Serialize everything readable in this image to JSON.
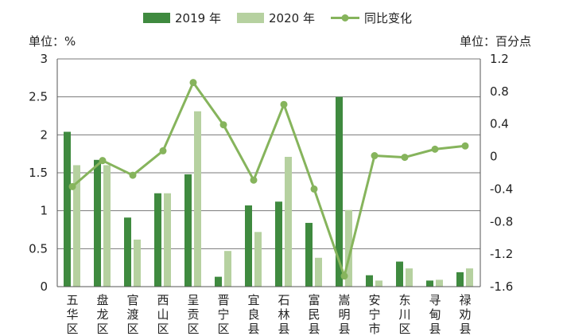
{
  "chart_data": {
    "type": "bar",
    "categories": [
      "五华区",
      "盘龙区",
      "官渡区",
      "西山区",
      "呈贡区",
      "晋宁区",
      "宜良县",
      "石林县",
      "富民县",
      "嵩明县",
      "安宁市",
      "东川区",
      "寻甸县",
      "禄劝县"
    ],
    "series": [
      {
        "name": "2019 年",
        "kind": "bar",
        "axis": "left",
        "color": "#3f8a3f",
        "values": [
          2.04,
          1.67,
          0.91,
          1.23,
          1.48,
          0.13,
          1.07,
          1.12,
          0.84,
          2.5,
          0.15,
          0.33,
          0.08,
          0.19
        ]
      },
      {
        "name": "2020 年",
        "kind": "bar",
        "axis": "left",
        "color": "#b6d1a0",
        "values": [
          1.6,
          1.6,
          0.62,
          1.23,
          2.31,
          0.47,
          0.72,
          1.71,
          0.38,
          1.01,
          0.08,
          0.24,
          0.09,
          0.24
        ]
      },
      {
        "name": "同比变化",
        "kind": "line",
        "axis": "right",
        "color": "#86b45c",
        "values": [
          -0.37,
          -0.05,
          -0.23,
          0.07,
          0.91,
          0.39,
          -0.29,
          0.64,
          -0.4,
          -1.47,
          0.01,
          -0.01,
          0.09,
          0.13
        ]
      }
    ],
    "left_axis": {
      "unit_label": "单位：%",
      "min": 0,
      "max": 3,
      "ticks": [
        0,
        0.5,
        1,
        1.5,
        2,
        2.5,
        3
      ],
      "tick_labels": [
        "0",
        "0.5",
        "1",
        "1.5",
        "2",
        "2.5",
        "3"
      ]
    },
    "right_axis": {
      "unit_label": "单位：百分点",
      "min": -1.6,
      "max": 1.2,
      "ticks": [
        -1.6,
        -1.2,
        -0.8,
        -0.4,
        0,
        0.4,
        0.8,
        1.2
      ],
      "tick_labels": [
        "-1.6",
        "-1.2",
        "-0.8",
        "-0.4",
        "0",
        "0.4",
        "0.8",
        "1.2"
      ]
    },
    "grid": true,
    "legend": {
      "position": "top-center",
      "entries": [
        "2019 年",
        "2020 年",
        "同比变化"
      ]
    }
  }
}
